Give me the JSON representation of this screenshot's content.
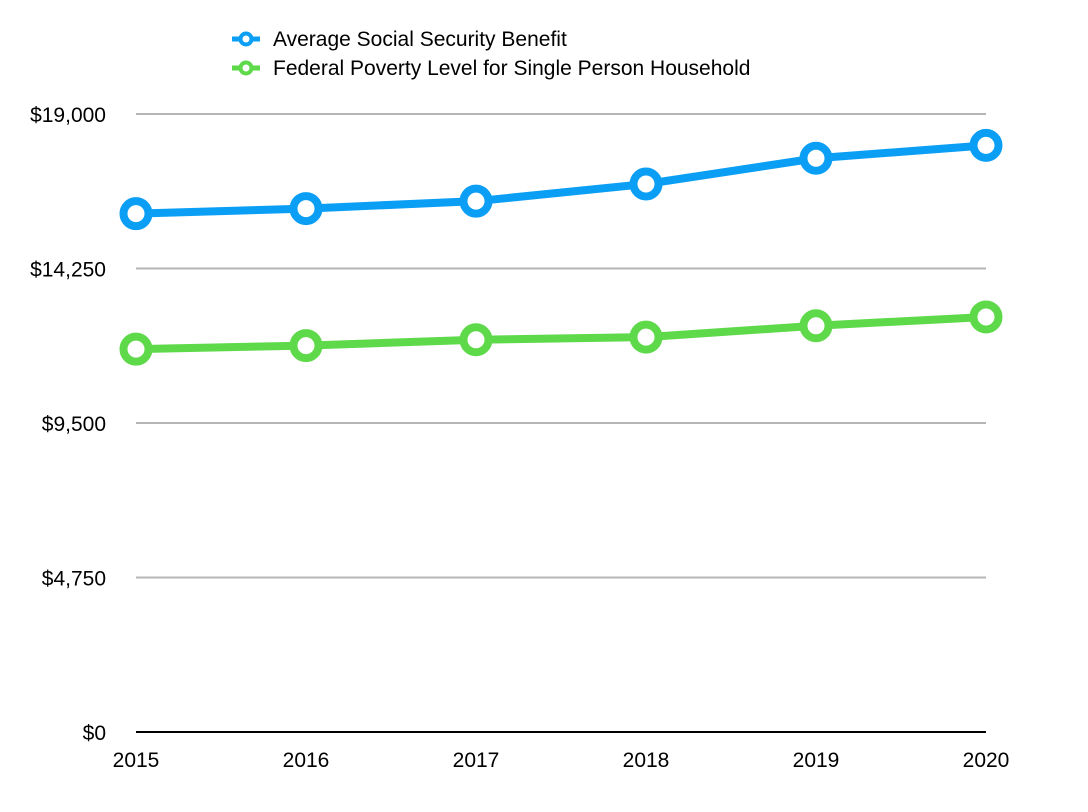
{
  "chart_data": {
    "type": "line",
    "title": "",
    "xlabel": "",
    "ylabel": "",
    "categories": [
      "2015",
      "2016",
      "2017",
      "2018",
      "2019",
      "2020"
    ],
    "ylim": [
      0,
      19000
    ],
    "yticks": [
      0,
      4750,
      9500,
      14250,
      19000
    ],
    "ytick_labels": [
      "$0",
      "$4,750",
      "$9,500",
      "$14,250",
      "$19,000"
    ],
    "grid": true,
    "legend_position": "top",
    "series": [
      {
        "name": "Average Social Security Benefit",
        "color": "#0a9ef5",
        "values": [
          15936,
          16092,
          16320,
          16848,
          17640,
          18036
        ]
      },
      {
        "name": "Federal Poverty Level for Single Person Household",
        "color": "#5ed94a",
        "values": [
          11770,
          11880,
          12060,
          12140,
          12490,
          12760
        ]
      }
    ]
  }
}
